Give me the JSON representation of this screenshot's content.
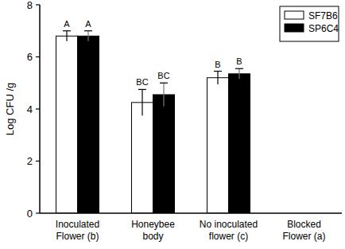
{
  "chart_data": {
    "type": "bar",
    "y_label": "Log CFU /g",
    "categories": [
      "Inoculated Flower (b)",
      "Honeybee body",
      "No inoculated flower (c)",
      "Blocked Flower (a)"
    ],
    "series": [
      {
        "name": "SF7B6",
        "color": "#ffffff",
        "values": [
          6.8,
          4.25,
          5.2,
          0
        ],
        "errors": [
          0.2,
          0.5,
          0.25,
          0
        ],
        "labels": [
          "A",
          "BC",
          "B",
          null
        ]
      },
      {
        "name": "SP6C4",
        "color": "#000000",
        "values": [
          6.8,
          4.55,
          5.35,
          0
        ],
        "errors": [
          0.2,
          0.45,
          0.2,
          0
        ],
        "labels": [
          "A",
          "BC",
          "B",
          null
        ]
      }
    ],
    "ylim": [
      0,
      8
    ],
    "yticks": [
      0,
      2,
      4,
      6,
      8
    ],
    "grid": false,
    "legend": "upper right"
  }
}
